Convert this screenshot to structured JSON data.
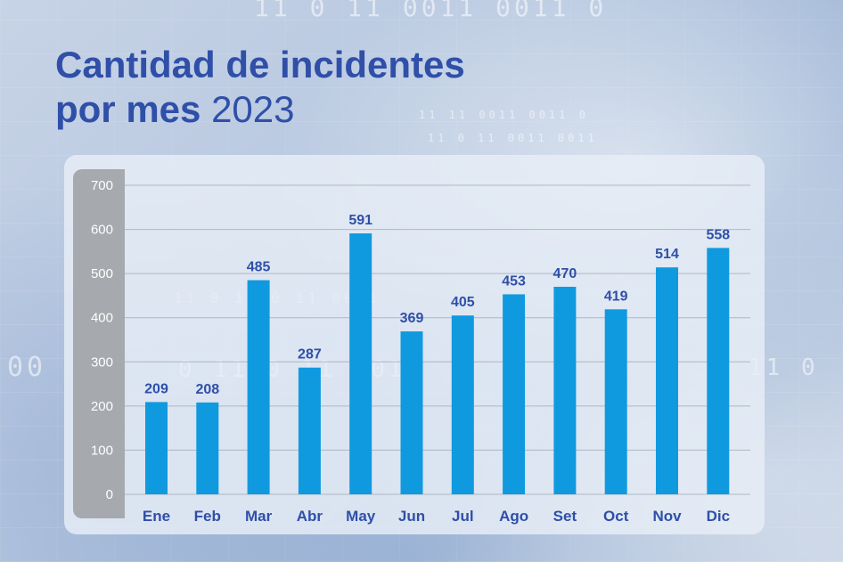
{
  "title": {
    "main": "Cantidad de incidentes",
    "line2": "por mes",
    "year": "2023"
  },
  "colors": {
    "title": "#2f4fa8",
    "bar": "#0f9ae0",
    "axis_strip": "#a6a9ad",
    "grid": "#9aa3b0"
  },
  "chart_data": {
    "type": "bar",
    "categories": [
      "Ene",
      "Feb",
      "Mar",
      "Abr",
      "May",
      "Jun",
      "Jul",
      "Ago",
      "Set",
      "Oct",
      "Nov",
      "Dic"
    ],
    "values": [
      209,
      208,
      485,
      287,
      591,
      369,
      405,
      453,
      470,
      419,
      514,
      558
    ],
    "data_labels": [
      "209",
      "208",
      "485",
      "287",
      "591",
      "369",
      "405",
      "453",
      "470",
      "419",
      "514",
      "558"
    ],
    "ylim": [
      0,
      700
    ],
    "yticks": [
      0,
      100,
      200,
      300,
      400,
      500,
      600,
      700
    ],
    "ytick_labels": [
      "0",
      "100",
      "200",
      "300",
      "400",
      "500",
      "600",
      "700"
    ],
    "grid": true,
    "legend": "none"
  }
}
